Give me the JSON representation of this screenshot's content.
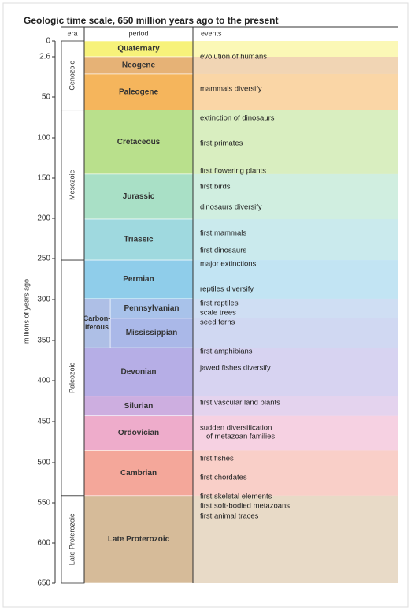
{
  "title": "Geologic time scale, 650 million years ago to the present",
  "axis_label": "millions of years ago",
  "headers": {
    "era": "era",
    "period": "period",
    "events": "events"
  },
  "axis": {
    "ticks": [
      0,
      2.6,
      50,
      100,
      150,
      200,
      250,
      300,
      350,
      400,
      450,
      500,
      550,
      600,
      650
    ]
  },
  "eras": [
    {
      "name": "Cenozoic",
      "start": 0,
      "end": 66
    },
    {
      "name": "Mesozoic",
      "start": 66,
      "end": 252
    },
    {
      "name": "Paleozoic",
      "start": 252,
      "end": 541
    },
    {
      "name": "Late Proterozoic",
      "start": 541,
      "end": 650
    }
  ],
  "group": {
    "lines": [
      "Carbon-",
      "iferous"
    ],
    "start": 299,
    "end": 359,
    "color": "#aebfe6"
  },
  "periods": [
    {
      "name": "Quaternary",
      "start": 0,
      "end": 2.6,
      "color": "#f7f27a"
    },
    {
      "name": "Neogene",
      "start": 2.6,
      "end": 23,
      "color": "#e6b276"
    },
    {
      "name": "Paleogene",
      "start": 23,
      "end": 66,
      "color": "#f5b55c"
    },
    {
      "name": "Cretaceous",
      "start": 66,
      "end": 145,
      "color": "#b9e08c"
    },
    {
      "name": "Jurassic",
      "start": 145,
      "end": 201,
      "color": "#a9e0c6"
    },
    {
      "name": "Triassic",
      "start": 201,
      "end": 252,
      "color": "#9fd9df"
    },
    {
      "name": "Permian",
      "start": 252,
      "end": 299,
      "color": "#8fcdea"
    },
    {
      "name": "Pennsylvanian",
      "start": 299,
      "end": 323,
      "color": "#a8c2ea"
    },
    {
      "name": "Mississippian",
      "start": 323,
      "end": 359,
      "color": "#aab8e8"
    },
    {
      "name": "Devonian",
      "start": 359,
      "end": 419,
      "color": "#b6aee6"
    },
    {
      "name": "Silurian",
      "start": 419,
      "end": 443,
      "color": "#cdaee0"
    },
    {
      "name": "Ordovician",
      "start": 443,
      "end": 485,
      "color": "#eeaccb"
    },
    {
      "name": "Cambrian",
      "start": 485,
      "end": 541,
      "color": "#f4a79a"
    },
    {
      "name": "Late Proterozoic",
      "start": 541,
      "end": 650,
      "color": "#d6bb99"
    }
  ],
  "events": [
    "evolution of humans",
    "mammals diversify",
    "extinction of dinosaurs",
    "first primates",
    "first flowering plants",
    "first birds",
    "dinosaurs diversify",
    "first mammals",
    "first dinosaurs",
    "major extinctions",
    "reptiles diversify",
    "first reptiles",
    "scale trees",
    "seed ferns",
    "first amphibians",
    "jawed fishes diversify",
    "first vascular land plants",
    "sudden diversification",
    "of metazoan families",
    "first fishes",
    "first chordates",
    "first skeletal elements",
    "first soft-bodied metazoans",
    "first animal traces"
  ]
}
